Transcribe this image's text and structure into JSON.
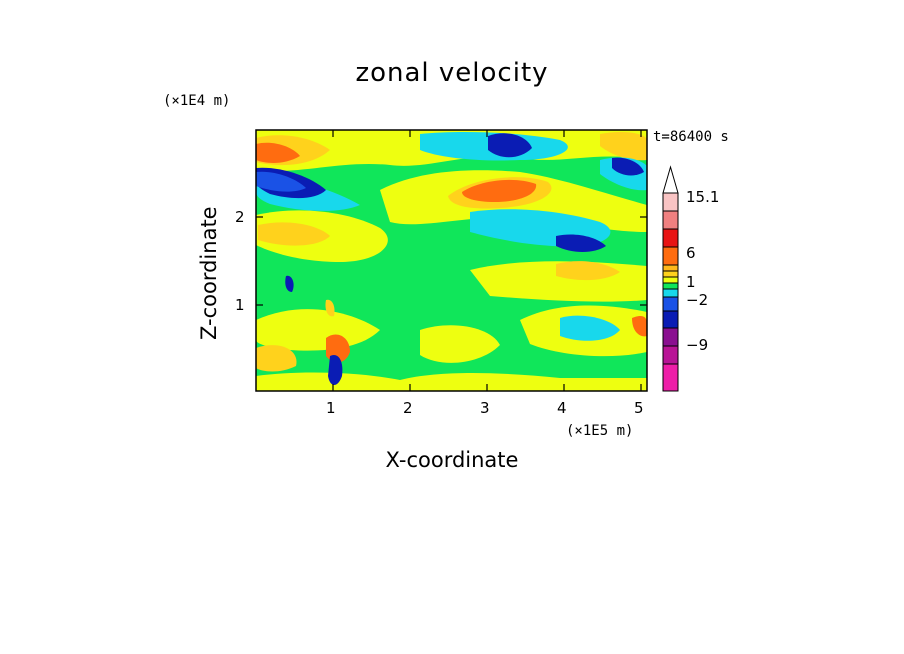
{
  "chart_data": {
    "type": "heatmap",
    "title": "zonal velocity",
    "xlabel": "X-coordinate",
    "ylabel": "Z-coordinate",
    "x_unit": "(×1E5 m)",
    "z_unit": "(×1E4 m)",
    "time_label": "t=86400 s",
    "xlim": [
      0,
      5.1
    ],
    "ylim": [
      0,
      2.95
    ],
    "xticks": [
      "1",
      "2",
      "3",
      "4",
      "5"
    ],
    "yticks": [
      "1",
      "2"
    ],
    "colorbar": {
      "tick_labels": [
        "15.1",
        "6",
        "1",
        "−2",
        "−9"
      ],
      "colors": [
        "#ee1ea8",
        "#b81496",
        "#8a0f90",
        "#0a1cb4",
        "#1a52e6",
        "#18d8ec",
        "#10e65a",
        "#eeff10",
        "#ffd21c",
        "#ffb81c",
        "#ff6c10",
        "#e81414",
        "#f08080",
        "#f9c4c4"
      ]
    }
  }
}
